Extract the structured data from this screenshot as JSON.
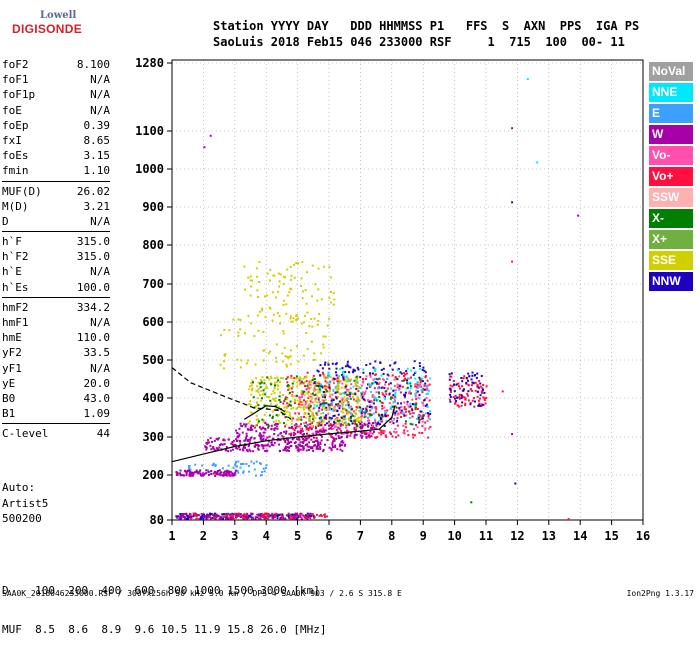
{
  "logo": {
    "line1": "Lowell",
    "line2": "DIGISONDE"
  },
  "header": {
    "line1": "Station YYYY DAY   DDD HHMMSS P1   FFS  S  AXN  PPS  IGA PS",
    "line2": "SaoLuis 2018 Feb15 046 233000 RSF     1  715  100  00- 11"
  },
  "params": [
    [
      {
        "k": "foF2",
        "v": "8.100"
      },
      {
        "k": "foF1",
        "v": "N/A"
      },
      {
        "k": "foF1p",
        "v": "N/A"
      },
      {
        "k": "foE",
        "v": "N/A"
      },
      {
        "k": "foEp",
        "v": "0.39"
      },
      {
        "k": "fxI",
        "v": "8.65"
      },
      {
        "k": "foEs",
        "v": "3.15"
      },
      {
        "k": "fmin",
        "v": "1.10"
      }
    ],
    [
      {
        "k": "MUF(D)",
        "v": "26.02"
      },
      {
        "k": "M(D)",
        "v": "3.21"
      },
      {
        "k": "D",
        "v": "N/A"
      }
    ],
    [
      {
        "k": "h`F",
        "v": "315.0"
      },
      {
        "k": "h`F2",
        "v": "315.0"
      },
      {
        "k": "h`E",
        "v": "N/A"
      },
      {
        "k": "h`Es",
        "v": "100.0"
      }
    ],
    [
      {
        "k": "hmF2",
        "v": "334.2"
      },
      {
        "k": "hmF1",
        "v": "N/A"
      },
      {
        "k": "hmE",
        "v": "110.0"
      },
      {
        "k": "yF2",
        "v": "33.5"
      },
      {
        "k": "yF1",
        "v": "N/A"
      },
      {
        "k": "yE",
        "v": "20.0"
      },
      {
        "k": "B0",
        "v": "43.0"
      },
      {
        "k": "B1",
        "v": "1.09"
      }
    ],
    [
      {
        "k": "C-level",
        "v": "44"
      }
    ]
  ],
  "auto": {
    "line1": "Auto:",
    "line2": "Artist5",
    "line3": "500200"
  },
  "dmuf": {
    "d_line": "D    100  200  400  600  800 1000 1500 3000 [km]",
    "muf_line": "MUF  8.5  8.6  8.9  9.6 10.5 11.9 15.8 26.0 [MHz]"
  },
  "footer": "SAA0K_2018046233000.RSF / 300fx256h 50 kHz 5.0 km / DPS-4 SAA0K 903 / 2.6 S 315.8 E",
  "version": "Ion2Png 1.3.17",
  "legend": [
    {
      "label": "NoVal",
      "color": "#a0a0a0"
    },
    {
      "label": "NNE",
      "color": "#00e8ff"
    },
    {
      "label": "E",
      "color": "#3ca0ff"
    },
    {
      "label": "W",
      "color": "#a800a8"
    },
    {
      "label": "Vo-",
      "color": "#ff50b0"
    },
    {
      "label": "Vo+",
      "color": "#ff1040"
    },
    {
      "label": "SSW",
      "color": "#ffb0b0"
    },
    {
      "label": "X-",
      "color": "#008000"
    },
    {
      "label": "X+",
      "color": "#70b040"
    },
    {
      "label": "SSE",
      "color": "#d0d000"
    },
    {
      "label": "NNW",
      "color": "#2000c0"
    }
  ],
  "chart_data": {
    "type": "scatter",
    "title": "",
    "xlabel": "",
    "ylabel": "",
    "xlim": [
      1,
      16
    ],
    "ylim": [
      80,
      1280
    ],
    "x_ticks": [
      1,
      2,
      3,
      4,
      5,
      6,
      7,
      8,
      9,
      10,
      11,
      12,
      13,
      14,
      15,
      16
    ],
    "y_ticks": [
      80,
      200,
      300,
      400,
      500,
      600,
      700,
      800,
      900,
      1000,
      1100,
      1280
    ],
    "grid": "dotted",
    "legend_position": "right",
    "series": [
      {
        "name": "profile-height-curve",
        "x": [
          1.0,
          2.0,
          3.0,
          4.0,
          5.0,
          6.0,
          7.0,
          7.6,
          8.0,
          8.1
        ],
        "y": [
          235,
          255,
          275,
          290,
          300,
          308,
          315,
          320,
          350,
          380
        ]
      },
      {
        "name": "virtual-height-curve",
        "x": [
          1.0,
          1.6,
          2.2,
          2.8,
          3.3,
          3.6,
          4.0,
          4.4,
          4.8
        ],
        "y": [
          480,
          440,
          420,
          400,
          385,
          375,
          372,
          368,
          345
        ]
      },
      {
        "name": "x-trace-curve",
        "x": [
          3.3,
          3.6,
          4.0,
          4.3,
          4.6
        ],
        "y": [
          345,
          360,
          380,
          378,
          365
        ]
      }
    ],
    "clusters": [
      {
        "color": "#a800a8",
        "xr": [
          2.0,
          6.5
        ],
        "yr": [
          265,
          300
        ],
        "n": 260
      },
      {
        "color": "#a800a8",
        "xr": [
          3.0,
          7.5
        ],
        "yr": [
          300,
          340
        ],
        "n": 220
      },
      {
        "color": "#ff1040",
        "xr": [
          4.5,
          9.2
        ],
        "yr": [
          300,
          470
        ],
        "n": 340
      },
      {
        "color": "#ff50b0",
        "xr": [
          5.0,
          9.2
        ],
        "yr": [
          310,
          460
        ],
        "n": 240
      },
      {
        "color": "#d0d000",
        "xr": [
          3.4,
          7.0
        ],
        "yr": [
          330,
          460
        ],
        "n": 360
      },
      {
        "color": "#d0d000",
        "xr": [
          3.2,
          6.2
        ],
        "yr": [
          610,
          760
        ],
        "n": 90
      },
      {
        "color": "#2000c0",
        "xr": [
          5.5,
          9.2
        ],
        "yr": [
          330,
          500
        ],
        "n": 200
      },
      {
        "color": "#00e8ff",
        "xr": [
          5.5,
          9.2
        ],
        "yr": [
          340,
          480
        ],
        "n": 120
      },
      {
        "color": "#008000",
        "xr": [
          3.5,
          9.0
        ],
        "yr": [
          330,
          460
        ],
        "n": 120
      },
      {
        "color": "#3ca0ff",
        "xr": [
          1.5,
          4.0
        ],
        "yr": [
          200,
          240
        ],
        "n": 60
      },
      {
        "color": "#a800a8",
        "xr": [
          1.1,
          3.0
        ],
        "yr": [
          200,
          215
        ],
        "n": 110
      },
      {
        "color": "#2000c0",
        "xr": [
          1.1,
          5.5
        ],
        "yr": [
          85,
          100
        ],
        "n": 160
      },
      {
        "color": "#a800a8",
        "xr": [
          1.1,
          5.5
        ],
        "yr": [
          85,
          100
        ],
        "n": 120
      },
      {
        "color": "#ff1040",
        "xr": [
          1.5,
          6.0
        ],
        "yr": [
          85,
          100
        ],
        "n": 70
      },
      {
        "color": "#ff1040",
        "xr": [
          9.8,
          11.0
        ],
        "yr": [
          380,
          460
        ],
        "n": 80
      },
      {
        "color": "#2000c0",
        "xr": [
          9.8,
          11.0
        ],
        "yr": [
          380,
          470
        ],
        "n": 50
      },
      {
        "color": "#d0d000",
        "xr": [
          2.5,
          6.0
        ],
        "yr": [
          480,
          620
        ],
        "n": 80
      }
    ],
    "outliers": [
      {
        "x": 12.3,
        "y": 1240,
        "color": "#00e8ff"
      },
      {
        "x": 11.8,
        "y": 1110,
        "color": "#a800a8"
      },
      {
        "x": 12.6,
        "y": 1020,
        "color": "#00e8ff"
      },
      {
        "x": 11.8,
        "y": 915,
        "color": "#2000c0"
      },
      {
        "x": 13.9,
        "y": 880,
        "color": "#a800a8"
      },
      {
        "x": 11.8,
        "y": 760,
        "color": "#ff1040"
      },
      {
        "x": 11.8,
        "y": 310,
        "color": "#a800a8"
      },
      {
        "x": 11.9,
        "y": 180,
        "color": "#2000c0"
      },
      {
        "x": 2.0,
        "y": 1060,
        "color": "#a800a8"
      },
      {
        "x": 2.2,
        "y": 1090,
        "color": "#a800a8"
      },
      {
        "x": 11.5,
        "y": 420,
        "color": "#ff1040"
      },
      {
        "x": 10.5,
        "y": 130,
        "color": "#008000"
      },
      {
        "x": 13.6,
        "y": 85,
        "color": "#ff1040"
      }
    ]
  }
}
